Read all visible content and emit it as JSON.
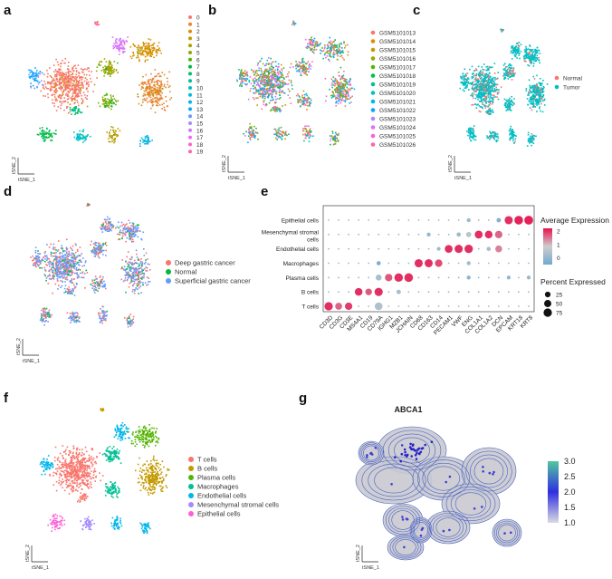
{
  "panel_labels": [
    "a",
    "b",
    "c",
    "d",
    "e",
    "f",
    "g"
  ],
  "tsne_axis": {
    "x": "tSNE_1",
    "y": "tSNE_2"
  },
  "chart_data": [
    {
      "id": "a",
      "type": "scatter",
      "title": "",
      "xlabel": "tSNE_1",
      "ylabel": "tSNE_2",
      "legend_position": "right",
      "categories": [
        "0",
        "1",
        "2",
        "3",
        "4",
        "5",
        "6",
        "7",
        "8",
        "9",
        "10",
        "11",
        "12",
        "13",
        "14",
        "15",
        "16",
        "17",
        "18",
        "19"
      ],
      "colors": [
        "#F8766D",
        "#EB8335",
        "#DA8F00",
        "#C49A00",
        "#A9A400",
        "#86AC00",
        "#53B400",
        "#00BA38",
        "#00BE6C",
        "#00C094",
        "#00C0B8",
        "#00BCD8",
        "#00B4F0",
        "#00A9FF",
        "#619CFF",
        "#A58AFF",
        "#D078FF",
        "#EE6AEF",
        "#FD61D1",
        "#FF65AE"
      ]
    },
    {
      "id": "b",
      "type": "scatter",
      "title": "",
      "xlabel": "tSNE_1",
      "ylabel": "tSNE_2",
      "legend_position": "right",
      "categories": [
        "GSM5101013",
        "GSM5101014",
        "GSM5101015",
        "GSM5101016",
        "GSM5101017",
        "GSM5101018",
        "GSM5101019",
        "GSM5101020",
        "GSM5101021",
        "GSM5101022",
        "GSM5101023",
        "GSM5101024",
        "GSM5101025",
        "GSM5101026"
      ],
      "colors": [
        "#F8766D",
        "#E38900",
        "#C49A00",
        "#99A800",
        "#53B400",
        "#00BC56",
        "#00C094",
        "#00BFC4",
        "#00B6EB",
        "#06A4FF",
        "#A58AFF",
        "#DF70F8",
        "#FB61D7",
        "#FF66A8"
      ]
    },
    {
      "id": "c",
      "type": "scatter",
      "title": "",
      "xlabel": "tSNE_1",
      "ylabel": "tSNE_2",
      "legend_position": "right",
      "categories": [
        "Normal",
        "Tumor"
      ],
      "colors": [
        "#F8766D",
        "#00BFC4"
      ]
    },
    {
      "id": "d",
      "type": "scatter",
      "title": "",
      "xlabel": "tSNE_1",
      "ylabel": "tSNE_2",
      "legend_position": "right",
      "categories": [
        "Deep gastric cancer",
        "Normal",
        "Superficial gastric cancer"
      ],
      "colors": [
        "#F8766D",
        "#00BA38",
        "#619CFF"
      ]
    },
    {
      "id": "e",
      "type": "dotplot",
      "rows": [
        "Epithelial cells",
        "Mesenchymal stromal cells",
        "Endothelial cells",
        "Macrophages",
        "Plasma cells",
        "B cells",
        "T cells"
      ],
      "genes": [
        "CD3D",
        "CD3G",
        "CD3E",
        "MS4A1",
        "CD19",
        "CD79A",
        "IGHG1",
        "MZB1",
        "JCHAIN",
        "CD68",
        "CD163",
        "CD14",
        "PECAM1",
        "VWF",
        "ENG",
        "COL1A1",
        "COL1A2",
        "DCN",
        "EPCAM",
        "KRT18",
        "KRT8"
      ],
      "cells": [
        {
          "row": "Epithelial cells",
          "gene": "EPCAM",
          "avg": 2.0,
          "pct": 70
        },
        {
          "row": "Epithelial cells",
          "gene": "KRT18",
          "avg": 2.1,
          "pct": 82
        },
        {
          "row": "Epithelial cells",
          "gene": "KRT8",
          "avg": 2.1,
          "pct": 85
        },
        {
          "row": "Epithelial cells",
          "gene": "ENG",
          "avg": 0.1,
          "pct": 8
        },
        {
          "row": "Epithelial cells",
          "gene": "DCN",
          "avg": -0.2,
          "pct": 12
        },
        {
          "row": "Mesenchymal stromal cells",
          "gene": "COL1A1",
          "avg": 2.0,
          "pct": 65
        },
        {
          "row": "Mesenchymal stromal cells",
          "gene": "COL1A2",
          "avg": 2.0,
          "pct": 60
        },
        {
          "row": "Mesenchymal stromal cells",
          "gene": "DCN",
          "avg": 1.6,
          "pct": 55
        },
        {
          "row": "Mesenchymal stromal cells",
          "gene": "ENG",
          "avg": 0.5,
          "pct": 20
        },
        {
          "row": "Mesenchymal stromal cells",
          "gene": "CD163",
          "avg": 0.0,
          "pct": 8
        },
        {
          "row": "Mesenchymal stromal cells",
          "gene": "VWF",
          "avg": 0.1,
          "pct": 10
        },
        {
          "row": "Endothelial cells",
          "gene": "PECAM1",
          "avg": 2.0,
          "pct": 62
        },
        {
          "row": "Endothelial cells",
          "gene": "VWF",
          "avg": 2.0,
          "pct": 70
        },
        {
          "row": "Endothelial cells",
          "gene": "ENG",
          "avg": 2.0,
          "pct": 75
        },
        {
          "row": "Endothelial cells",
          "gene": "DCN",
          "avg": 1.4,
          "pct": 45
        },
        {
          "row": "Endothelial cells",
          "gene": "COL1A2",
          "avg": 0.3,
          "pct": 10
        },
        {
          "row": "Endothelial cells",
          "gene": "CD14",
          "avg": 0.1,
          "pct": 6
        },
        {
          "row": "Macrophages",
          "gene": "CD68",
          "avg": 2.0,
          "pct": 70
        },
        {
          "row": "Macrophages",
          "gene": "CD163",
          "avg": 2.0,
          "pct": 68
        },
        {
          "row": "Macrophages",
          "gene": "CD14",
          "avg": 1.8,
          "pct": 55
        },
        {
          "row": "Macrophages",
          "gene": "CD79A",
          "avg": -0.3,
          "pct": 10
        },
        {
          "row": "Macrophages",
          "gene": "ENG",
          "avg": 0.1,
          "pct": 8
        },
        {
          "row": "Plasma cells",
          "gene": "MZB1",
          "avg": 2.0,
          "pct": 78
        },
        {
          "row": "Plasma cells",
          "gene": "JCHAIN",
          "avg": 2.0,
          "pct": 82
        },
        {
          "row": "Plasma cells",
          "gene": "IGHG1",
          "avg": 1.7,
          "pct": 55
        },
        {
          "row": "Plasma cells",
          "gene": "CD79A",
          "avg": 0.3,
          "pct": 30
        },
        {
          "row": "Plasma cells",
          "gene": "ENG",
          "avg": -0.1,
          "pct": 8
        },
        {
          "row": "Plasma cells",
          "gene": "EPCAM",
          "avg": -0.1,
          "pct": 6
        },
        {
          "row": "Plasma cells",
          "gene": "KRT8",
          "avg": 0.0,
          "pct": 6
        },
        {
          "row": "B cells",
          "gene": "MS4A1",
          "avg": 2.0,
          "pct": 60
        },
        {
          "row": "B cells",
          "gene": "CD19",
          "avg": 1.7,
          "pct": 40
        },
        {
          "row": "B cells",
          "gene": "CD79A",
          "avg": 2.0,
          "pct": 72
        },
        {
          "row": "B cells",
          "gene": "MZB1",
          "avg": 0.3,
          "pct": 12
        },
        {
          "row": "T cells",
          "gene": "CD3D",
          "avg": 2.0,
          "pct": 75
        },
        {
          "row": "T cells",
          "gene": "CD3G",
          "avg": 1.6,
          "pct": 45
        },
        {
          "row": "T cells",
          "gene": "CD3E",
          "avg": 1.9,
          "pct": 55
        },
        {
          "row": "T cells",
          "gene": "CD79A",
          "avg": 0.4,
          "pct": 62
        }
      ],
      "legend_title_avg": "Average Expression",
      "legend_title_pct": "Percent Expressed",
      "avg_ticks": [
        "2",
        "1",
        "0"
      ],
      "avg_range": [
        -0.5,
        2.2
      ],
      "pct_ticks": [
        "25",
        "50",
        "75"
      ],
      "pct_values": [
        25,
        50,
        75
      ]
    },
    {
      "id": "f",
      "type": "scatter",
      "title": "",
      "xlabel": "tSNE_1",
      "ylabel": "tSNE_2",
      "legend_position": "right",
      "categories": [
        "T cells",
        "B cells",
        "Plasma cells",
        "Macrophages",
        "Endothelial cells",
        "Mesenchymal stromal cells",
        "Epithelial cells"
      ],
      "colors": [
        "#F8766D",
        "#C49A00",
        "#53B400",
        "#00C094",
        "#00B6EB",
        "#A58AFF",
        "#FB61D7"
      ]
    },
    {
      "id": "g",
      "type": "density",
      "title": "ABCA1",
      "xlabel": "tSNE_1",
      "ylabel": "tSNE_2",
      "colorbar_ticks": [
        "3.0",
        "2.5",
        "2.0",
        "1.5",
        "1.0"
      ],
      "colorbar_range": [
        1.0,
        3.0
      ],
      "colorbar_colors": [
        "#d9d9e3",
        "#2f2fe0",
        "#52c8a0"
      ]
    }
  ]
}
